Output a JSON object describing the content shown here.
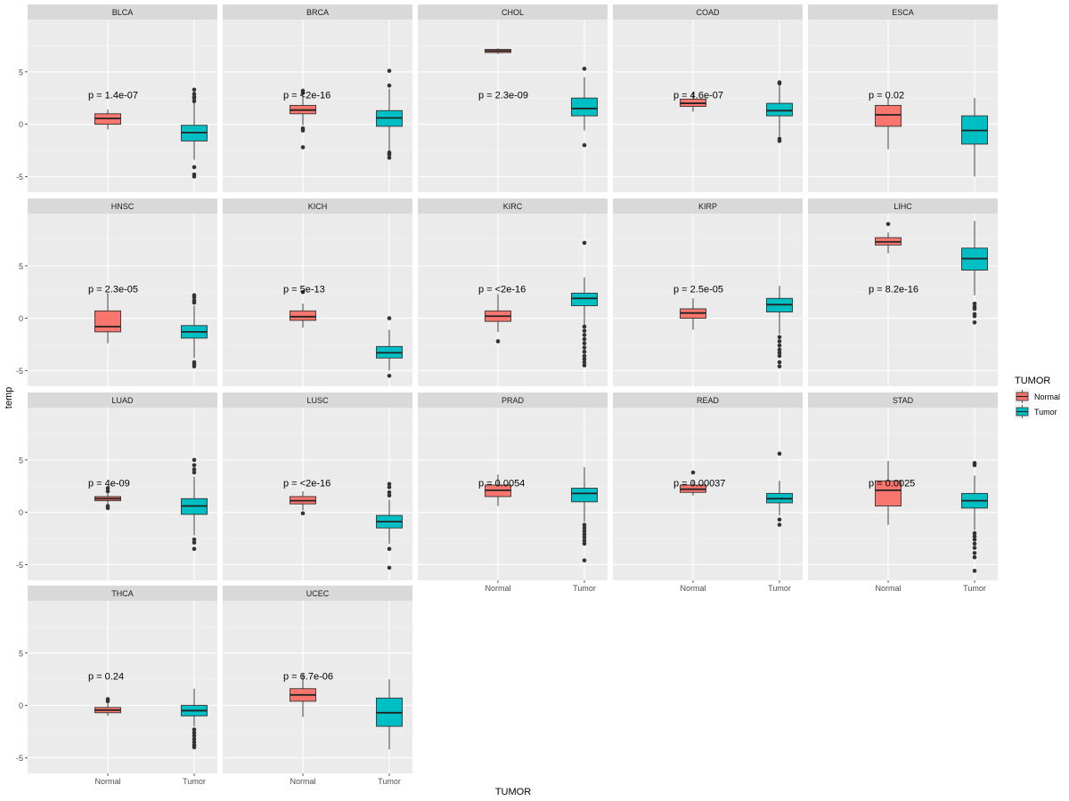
{
  "chart_data": {
    "type": "boxplot",
    "xlabel": "TUMOR",
    "ylabel": "temp",
    "ylim": [
      -6.5,
      10
    ],
    "yticks": [
      -5,
      0,
      5
    ],
    "categories": [
      "Normal",
      "Tumor"
    ],
    "legend": {
      "title": "TUMOR",
      "position": "right",
      "entries": [
        {
          "label": "Normal",
          "color": "#F8766D"
        },
        {
          "label": "Tumor",
          "color": "#00BFC4"
        }
      ]
    },
    "panels": [
      {
        "label": "BLCA",
        "pvalue": "p = 1.4e-07",
        "p_y": 2.8,
        "normal": {
          "whisker_low": -0.5,
          "q1": 0.0,
          "median": 0.55,
          "q3": 1.0,
          "whisker_high": 1.4,
          "outliers": []
        },
        "tumor": {
          "whisker_low": -3.4,
          "q1": -1.6,
          "median": -0.8,
          "q3": -0.1,
          "whisker_high": 2.0,
          "outliers": [
            2.2,
            2.5,
            2.6,
            2.9,
            3.3,
            -4.1,
            -4.8,
            -5.0
          ]
        }
      },
      {
        "label": "BRCA",
        "pvalue": "p = <2e-16",
        "p_y": 2.8,
        "normal": {
          "whisker_low": -0.1,
          "q1": 1.0,
          "median": 1.35,
          "q3": 1.8,
          "whisker_high": 2.8,
          "outliers": [
            3.0,
            3.2,
            -0.4,
            -0.6,
            -2.2
          ]
        },
        "tumor": {
          "whisker_low": -2.5,
          "q1": -0.2,
          "median": 0.6,
          "q3": 1.3,
          "whisker_high": 3.4,
          "outliers": [
            3.7,
            5.1,
            -2.7,
            -2.9,
            -3.2
          ]
        }
      },
      {
        "label": "CHOL",
        "pvalue": "p = 2.3e-09",
        "p_y": 2.8,
        "normal": {
          "whisker_low": 6.7,
          "q1": 6.85,
          "median": 7.0,
          "q3": 7.15,
          "whisker_high": 7.25,
          "outliers": []
        },
        "tumor": {
          "whisker_low": -0.6,
          "q1": 0.8,
          "median": 1.5,
          "q3": 2.5,
          "whisker_high": 4.5,
          "outliers": [
            5.3,
            -2.0
          ]
        }
      },
      {
        "label": "COAD",
        "pvalue": "p = 4.6e-07",
        "p_y": 2.8,
        "normal": {
          "whisker_low": 1.2,
          "q1": 1.7,
          "median": 2.0,
          "q3": 2.4,
          "whisker_high": 3.1,
          "outliers": []
        },
        "tumor": {
          "whisker_low": -1.2,
          "q1": 0.8,
          "median": 1.3,
          "q3": 2.0,
          "whisker_high": 3.7,
          "outliers": [
            3.9,
            4.0,
            -1.4,
            -1.6
          ]
        }
      },
      {
        "label": "ESCA",
        "pvalue": "p = 0.02",
        "p_y": 2.8,
        "normal": {
          "whisker_low": -2.4,
          "q1": -0.2,
          "median": 0.9,
          "q3": 1.8,
          "whisker_high": 2.5,
          "outliers": []
        },
        "tumor": {
          "whisker_low": -5.0,
          "q1": -1.9,
          "median": -0.6,
          "q3": 0.8,
          "whisker_high": 2.5,
          "outliers": []
        }
      },
      {
        "label": "HNSC",
        "pvalue": "p = 2.3e-05",
        "p_y": 2.8,
        "normal": {
          "whisker_low": -2.4,
          "q1": -1.3,
          "median": -0.8,
          "q3": 0.7,
          "whisker_high": 2.4,
          "outliers": []
        },
        "tumor": {
          "whisker_low": -3.8,
          "q1": -1.9,
          "median": -1.3,
          "q3": -0.7,
          "whisker_high": 1.2,
          "outliers": [
            1.5,
            1.7,
            2.0,
            2.2,
            -4.2,
            -4.4,
            -4.6
          ]
        }
      },
      {
        "label": "KICH",
        "pvalue": "p = 5e-13",
        "p_y": 2.8,
        "normal": {
          "whisker_low": -0.9,
          "q1": -0.2,
          "median": 0.15,
          "q3": 0.7,
          "whisker_high": 1.4,
          "outliers": [
            2.5
          ]
        },
        "tumor": {
          "whisker_low": -5.0,
          "q1": -3.8,
          "median": -3.3,
          "q3": -2.7,
          "whisker_high": -1.1,
          "outliers": [
            0.0,
            -5.5
          ]
        }
      },
      {
        "label": "KIRC",
        "pvalue": "p = <2e-16",
        "p_y": 2.8,
        "normal": {
          "whisker_low": -1.3,
          "q1": -0.3,
          "median": 0.2,
          "q3": 0.7,
          "whisker_high": 2.3,
          "outliers": [
            -2.2
          ]
        },
        "tumor": {
          "whisker_low": -0.6,
          "q1": 1.2,
          "median": 1.9,
          "q3": 2.4,
          "whisker_high": 3.9,
          "outliers": [
            7.2,
            -0.8,
            -1.2,
            -1.6,
            -2.0,
            -2.4,
            -2.8,
            -3.2,
            -3.6,
            -3.9,
            -4.2,
            -4.5
          ]
        }
      },
      {
        "label": "KIRP",
        "pvalue": "p = 2.5e-05",
        "p_y": 2.8,
        "normal": {
          "whisker_low": -1.1,
          "q1": 0.0,
          "median": 0.5,
          "q3": 0.9,
          "whisker_high": 1.9,
          "outliers": []
        },
        "tumor": {
          "whisker_low": -1.5,
          "q1": 0.6,
          "median": 1.3,
          "q3": 1.9,
          "whisker_high": 3.1,
          "outliers": [
            -1.8,
            -2.2,
            -2.6,
            -3.0,
            -3.3,
            -3.6,
            -4.2,
            -4.6
          ]
        }
      },
      {
        "label": "LIHC",
        "pvalue": "p = 8.2e-16",
        "p_y": 2.8,
        "normal": {
          "whisker_low": 6.2,
          "q1": 7.0,
          "median": 7.3,
          "q3": 7.7,
          "whisker_high": 8.2,
          "outliers": [
            9.0
          ]
        },
        "tumor": {
          "whisker_low": 2.2,
          "q1": 4.6,
          "median": 5.7,
          "q3": 6.7,
          "whisker_high": 9.3,
          "outliers": [
            1.4,
            1.1,
            0.9,
            0.4,
            0.2,
            -0.4
          ]
        }
      },
      {
        "label": "LUAD",
        "pvalue": "p = 4e-09",
        "p_y": 2.8,
        "normal": {
          "whisker_low": 0.8,
          "q1": 1.1,
          "median": 1.3,
          "q3": 1.5,
          "whisker_high": 1.8,
          "outliers": [
            2.0,
            2.3,
            0.6,
            0.4
          ]
        },
        "tumor": {
          "whisker_low": -2.2,
          "q1": -0.2,
          "median": 0.6,
          "q3": 1.3,
          "whisker_high": 3.4,
          "outliers": [
            3.8,
            4.1,
            4.5,
            5.0,
            -2.6,
            -2.9,
            -3.5
          ]
        }
      },
      {
        "label": "LUSC",
        "pvalue": "p = <2e-16",
        "p_y": 2.8,
        "normal": {
          "whisker_low": 0.2,
          "q1": 0.8,
          "median": 1.1,
          "q3": 1.5,
          "whisker_high": 2.0,
          "outliers": [
            -0.1
          ]
        },
        "tumor": {
          "whisker_low": -3.0,
          "q1": -1.5,
          "median": -0.9,
          "q3": -0.3,
          "whisker_high": 1.2,
          "outliers": [
            1.6,
            1.9,
            2.4,
            2.7,
            -3.5,
            -5.3
          ]
        }
      },
      {
        "label": "PRAD",
        "pvalue": "p = 0.0054",
        "p_y": 2.8,
        "normal": {
          "whisker_low": 0.6,
          "q1": 1.5,
          "median": 2.1,
          "q3": 2.6,
          "whisker_high": 3.6,
          "outliers": []
        },
        "tumor": {
          "whisker_low": -0.9,
          "q1": 1.0,
          "median": 1.8,
          "q3": 2.3,
          "whisker_high": 4.3,
          "outliers": [
            -1.2,
            -1.5,
            -1.8,
            -2.1,
            -2.4,
            -2.7,
            -3.0,
            -4.6
          ]
        }
      },
      {
        "label": "READ",
        "pvalue": "p = 0.00037",
        "p_y": 2.8,
        "normal": {
          "whisker_low": 1.6,
          "q1": 1.9,
          "median": 2.2,
          "q3": 2.6,
          "whisker_high": 3.0,
          "outliers": [
            3.8
          ]
        },
        "tumor": {
          "whisker_low": -0.3,
          "q1": 0.9,
          "median": 1.3,
          "q3": 1.8,
          "whisker_high": 3.0,
          "outliers": [
            5.6,
            -0.7,
            -1.2
          ]
        }
      },
      {
        "label": "STAD",
        "pvalue": "p = 0.0025",
        "p_y": 2.8,
        "normal": {
          "whisker_low": -1.2,
          "q1": 0.6,
          "median": 2.1,
          "q3": 3.0,
          "whisker_high": 4.9,
          "outliers": []
        },
        "tumor": {
          "whisker_low": -1.7,
          "q1": 0.4,
          "median": 1.1,
          "q3": 1.8,
          "whisker_high": 3.5,
          "outliers": [
            4.5,
            4.7,
            -2.0,
            -2.3,
            -2.6,
            -3.0,
            -3.4,
            -3.9,
            -4.3,
            -5.6
          ]
        }
      },
      {
        "label": "THCA",
        "pvalue": "p = 0.24",
        "p_y": 2.8,
        "normal": {
          "whisker_low": -1.0,
          "q1": -0.7,
          "median": -0.45,
          "q3": -0.2,
          "whisker_high": 0.2,
          "outliers": [
            0.4,
            0.6
          ]
        },
        "tumor": {
          "whisker_low": -2.0,
          "q1": -1.0,
          "median": -0.5,
          "q3": 0.0,
          "whisker_high": 1.6,
          "outliers": [
            -2.3,
            -2.6,
            -2.9,
            -3.2,
            -3.5,
            -3.8,
            -4.0
          ]
        }
      },
      {
        "label": "UCEC",
        "pvalue": "p = 6.7e-06",
        "p_y": 2.8,
        "normal": {
          "whisker_low": -1.1,
          "q1": 0.4,
          "median": 1.0,
          "q3": 1.6,
          "whisker_high": 3.0,
          "outliers": []
        },
        "tumor": {
          "whisker_low": -4.2,
          "q1": -2.0,
          "median": -0.7,
          "q3": 0.7,
          "whisker_high": 2.5,
          "outliers": []
        }
      }
    ]
  }
}
